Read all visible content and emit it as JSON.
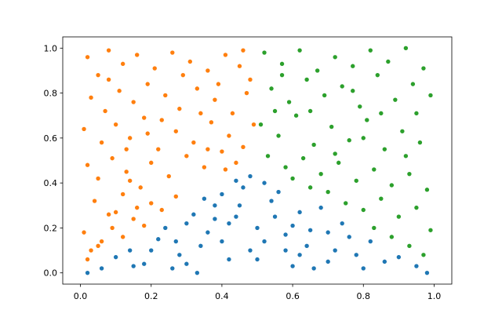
{
  "chart_data": {
    "type": "scatter",
    "title": "",
    "xlabel": "",
    "ylabel": "",
    "xlim": [
      -0.05,
      1.05
    ],
    "ylim": [
      -0.05,
      1.05
    ],
    "grid": false,
    "legend": "none",
    "x_ticks": [
      "0.0",
      "0.2",
      "0.4",
      "0.6",
      "0.8",
      "1.0"
    ],
    "y_ticks": [
      "0.0",
      "0.2",
      "0.4",
      "0.6",
      "0.8",
      "1.0"
    ],
    "series": [
      {
        "color": "#1f77b4",
        "points": [
          [
            0.02,
            0.0
          ],
          [
            0.06,
            0.02
          ],
          [
            0.1,
            0.07
          ],
          [
            0.14,
            0.1
          ],
          [
            0.18,
            0.04
          ],
          [
            0.22,
            0.15
          ],
          [
            0.26,
            0.02
          ],
          [
            0.3,
            0.22
          ],
          [
            0.34,
            0.12
          ],
          [
            0.38,
            0.3
          ],
          [
            0.42,
            0.06
          ],
          [
            0.46,
            0.38
          ],
          [
            0.5,
            0.2
          ],
          [
            0.54,
            0.32
          ],
          [
            0.58,
            0.1
          ],
          [
            0.62,
            0.27
          ],
          [
            0.66,
            0.02
          ],
          [
            0.7,
            0.18
          ],
          [
            0.74,
            0.22
          ],
          [
            0.78,
            0.08
          ],
          [
            0.82,
            0.14
          ],
          [
            0.86,
            0.05
          ],
          [
            0.9,
            0.07
          ],
          [
            0.95,
            0.03
          ],
          [
            0.98,
            0.0
          ],
          [
            0.24,
            0.2
          ],
          [
            0.28,
            0.08
          ],
          [
            0.32,
            0.26
          ],
          [
            0.36,
            0.18
          ],
          [
            0.4,
            0.35
          ],
          [
            0.44,
            0.25
          ],
          [
            0.48,
            0.43
          ],
          [
            0.52,
            0.14
          ],
          [
            0.56,
            0.36
          ],
          [
            0.6,
            0.21
          ],
          [
            0.64,
            0.12
          ],
          [
            0.68,
            0.29
          ],
          [
            0.72,
            0.1
          ],
          [
            0.76,
            0.16
          ],
          [
            0.8,
            0.02
          ],
          [
            0.2,
            0.1
          ],
          [
            0.3,
            0.04
          ],
          [
            0.4,
            0.14
          ],
          [
            0.5,
            0.06
          ],
          [
            0.6,
            0.03
          ],
          [
            0.7,
            0.05
          ],
          [
            0.35,
            0.33
          ],
          [
            0.45,
            0.3
          ],
          [
            0.55,
            0.25
          ],
          [
            0.65,
            0.19
          ],
          [
            0.42,
            0.22
          ],
          [
            0.48,
            0.1
          ],
          [
            0.58,
            0.17
          ],
          [
            0.33,
            0.0
          ],
          [
            0.44,
            0.41
          ],
          [
            0.52,
            0.4
          ],
          [
            0.15,
            0.03
          ],
          [
            0.27,
            0.14
          ],
          [
            0.38,
            0.24
          ],
          [
            0.62,
            0.08
          ]
        ]
      },
      {
        "color": "#ff7f0e",
        "points": [
          [
            0.02,
            0.96
          ],
          [
            0.05,
            0.88
          ],
          [
            0.08,
            0.99
          ],
          [
            0.12,
            0.93
          ],
          [
            0.16,
            0.97
          ],
          [
            0.21,
            0.91
          ],
          [
            0.26,
            0.98
          ],
          [
            0.31,
            0.94
          ],
          [
            0.36,
            0.9
          ],
          [
            0.41,
            0.97
          ],
          [
            0.46,
            0.99
          ],
          [
            0.48,
            0.86
          ],
          [
            0.03,
            0.78
          ],
          [
            0.07,
            0.72
          ],
          [
            0.11,
            0.81
          ],
          [
            0.15,
            0.76
          ],
          [
            0.19,
            0.84
          ],
          [
            0.24,
            0.79
          ],
          [
            0.28,
            0.73
          ],
          [
            0.33,
            0.82
          ],
          [
            0.38,
            0.77
          ],
          [
            0.43,
            0.71
          ],
          [
            0.47,
            0.8
          ],
          [
            0.01,
            0.64
          ],
          [
            0.06,
            0.58
          ],
          [
            0.1,
            0.66
          ],
          [
            0.14,
            0.6
          ],
          [
            0.18,
            0.69
          ],
          [
            0.22,
            0.55
          ],
          [
            0.27,
            0.63
          ],
          [
            0.32,
            0.58
          ],
          [
            0.37,
            0.67
          ],
          [
            0.42,
            0.61
          ],
          [
            0.46,
            0.56
          ],
          [
            0.49,
            0.66
          ],
          [
            0.02,
            0.48
          ],
          [
            0.05,
            0.42
          ],
          [
            0.09,
            0.51
          ],
          [
            0.13,
            0.45
          ],
          [
            0.17,
            0.38
          ],
          [
            0.2,
            0.49
          ],
          [
            0.25,
            0.43
          ],
          [
            0.3,
            0.52
          ],
          [
            0.35,
            0.47
          ],
          [
            0.4,
            0.54
          ],
          [
            0.44,
            0.49
          ],
          [
            0.27,
            0.34
          ],
          [
            0.04,
            0.32
          ],
          [
            0.08,
            0.26
          ],
          [
            0.12,
            0.35
          ],
          [
            0.16,
            0.29
          ],
          [
            0.2,
            0.31
          ],
          [
            0.23,
            0.28
          ],
          [
            0.01,
            0.18
          ],
          [
            0.03,
            0.1
          ],
          [
            0.06,
            0.14
          ],
          [
            0.09,
            0.2
          ],
          [
            0.12,
            0.16
          ],
          [
            0.15,
            0.24
          ],
          [
            0.18,
            0.21
          ],
          [
            0.02,
            0.06
          ],
          [
            0.05,
            0.12
          ],
          [
            0.1,
            0.27
          ],
          [
            0.14,
            0.41
          ],
          [
            0.29,
            0.88
          ],
          [
            0.34,
            0.71
          ],
          [
            0.39,
            0.84
          ],
          [
            0.45,
            0.92
          ],
          [
            0.23,
            0.68
          ],
          [
            0.08,
            0.86
          ],
          [
            0.13,
            0.55
          ],
          [
            0.19,
            0.62
          ],
          [
            0.36,
            0.55
          ],
          [
            0.41,
            0.46
          ]
        ]
      },
      {
        "color": "#2ca02c",
        "points": [
          [
            0.52,
            0.98
          ],
          [
            0.57,
            0.93
          ],
          [
            0.62,
            0.99
          ],
          [
            0.67,
            0.9
          ],
          [
            0.72,
            0.96
          ],
          [
            0.77,
            0.92
          ],
          [
            0.82,
            0.99
          ],
          [
            0.87,
            0.94
          ],
          [
            0.92,
            1.0
          ],
          [
            0.97,
            0.91
          ],
          [
            0.54,
            0.82
          ],
          [
            0.59,
            0.76
          ],
          [
            0.64,
            0.86
          ],
          [
            0.69,
            0.79
          ],
          [
            0.74,
            0.83
          ],
          [
            0.79,
            0.74
          ],
          [
            0.84,
            0.88
          ],
          [
            0.89,
            0.77
          ],
          [
            0.94,
            0.84
          ],
          [
            0.99,
            0.79
          ],
          [
            0.51,
            0.66
          ],
          [
            0.56,
            0.61
          ],
          [
            0.61,
            0.7
          ],
          [
            0.66,
            0.57
          ],
          [
            0.71,
            0.65
          ],
          [
            0.76,
            0.59
          ],
          [
            0.81,
            0.68
          ],
          [
            0.86,
            0.55
          ],
          [
            0.91,
            0.63
          ],
          [
            0.96,
            0.58
          ],
          [
            0.53,
            0.52
          ],
          [
            0.58,
            0.47
          ],
          [
            0.63,
            0.51
          ],
          [
            0.68,
            0.44
          ],
          [
            0.73,
            0.49
          ],
          [
            0.78,
            0.41
          ],
          [
            0.83,
            0.46
          ],
          [
            0.88,
            0.39
          ],
          [
            0.93,
            0.44
          ],
          [
            0.98,
            0.37
          ],
          [
            0.7,
            0.36
          ],
          [
            0.75,
            0.31
          ],
          [
            0.8,
            0.28
          ],
          [
            0.85,
            0.33
          ],
          [
            0.9,
            0.25
          ],
          [
            0.95,
            0.29
          ],
          [
            0.83,
            0.2
          ],
          [
            0.88,
            0.16
          ],
          [
            0.93,
            0.12
          ],
          [
            0.97,
            0.08
          ],
          [
            0.99,
            0.19
          ],
          [
            0.6,
            0.42
          ],
          [
            0.65,
            0.38
          ],
          [
            0.55,
            0.72
          ],
          [
            0.65,
            0.72
          ],
          [
            0.85,
            0.71
          ],
          [
            0.95,
            0.71
          ],
          [
            0.72,
            0.53
          ],
          [
            0.92,
            0.52
          ],
          [
            0.8,
            0.6
          ],
          [
            0.57,
            0.88
          ],
          [
            0.77,
            0.81
          ]
        ]
      }
    ]
  }
}
